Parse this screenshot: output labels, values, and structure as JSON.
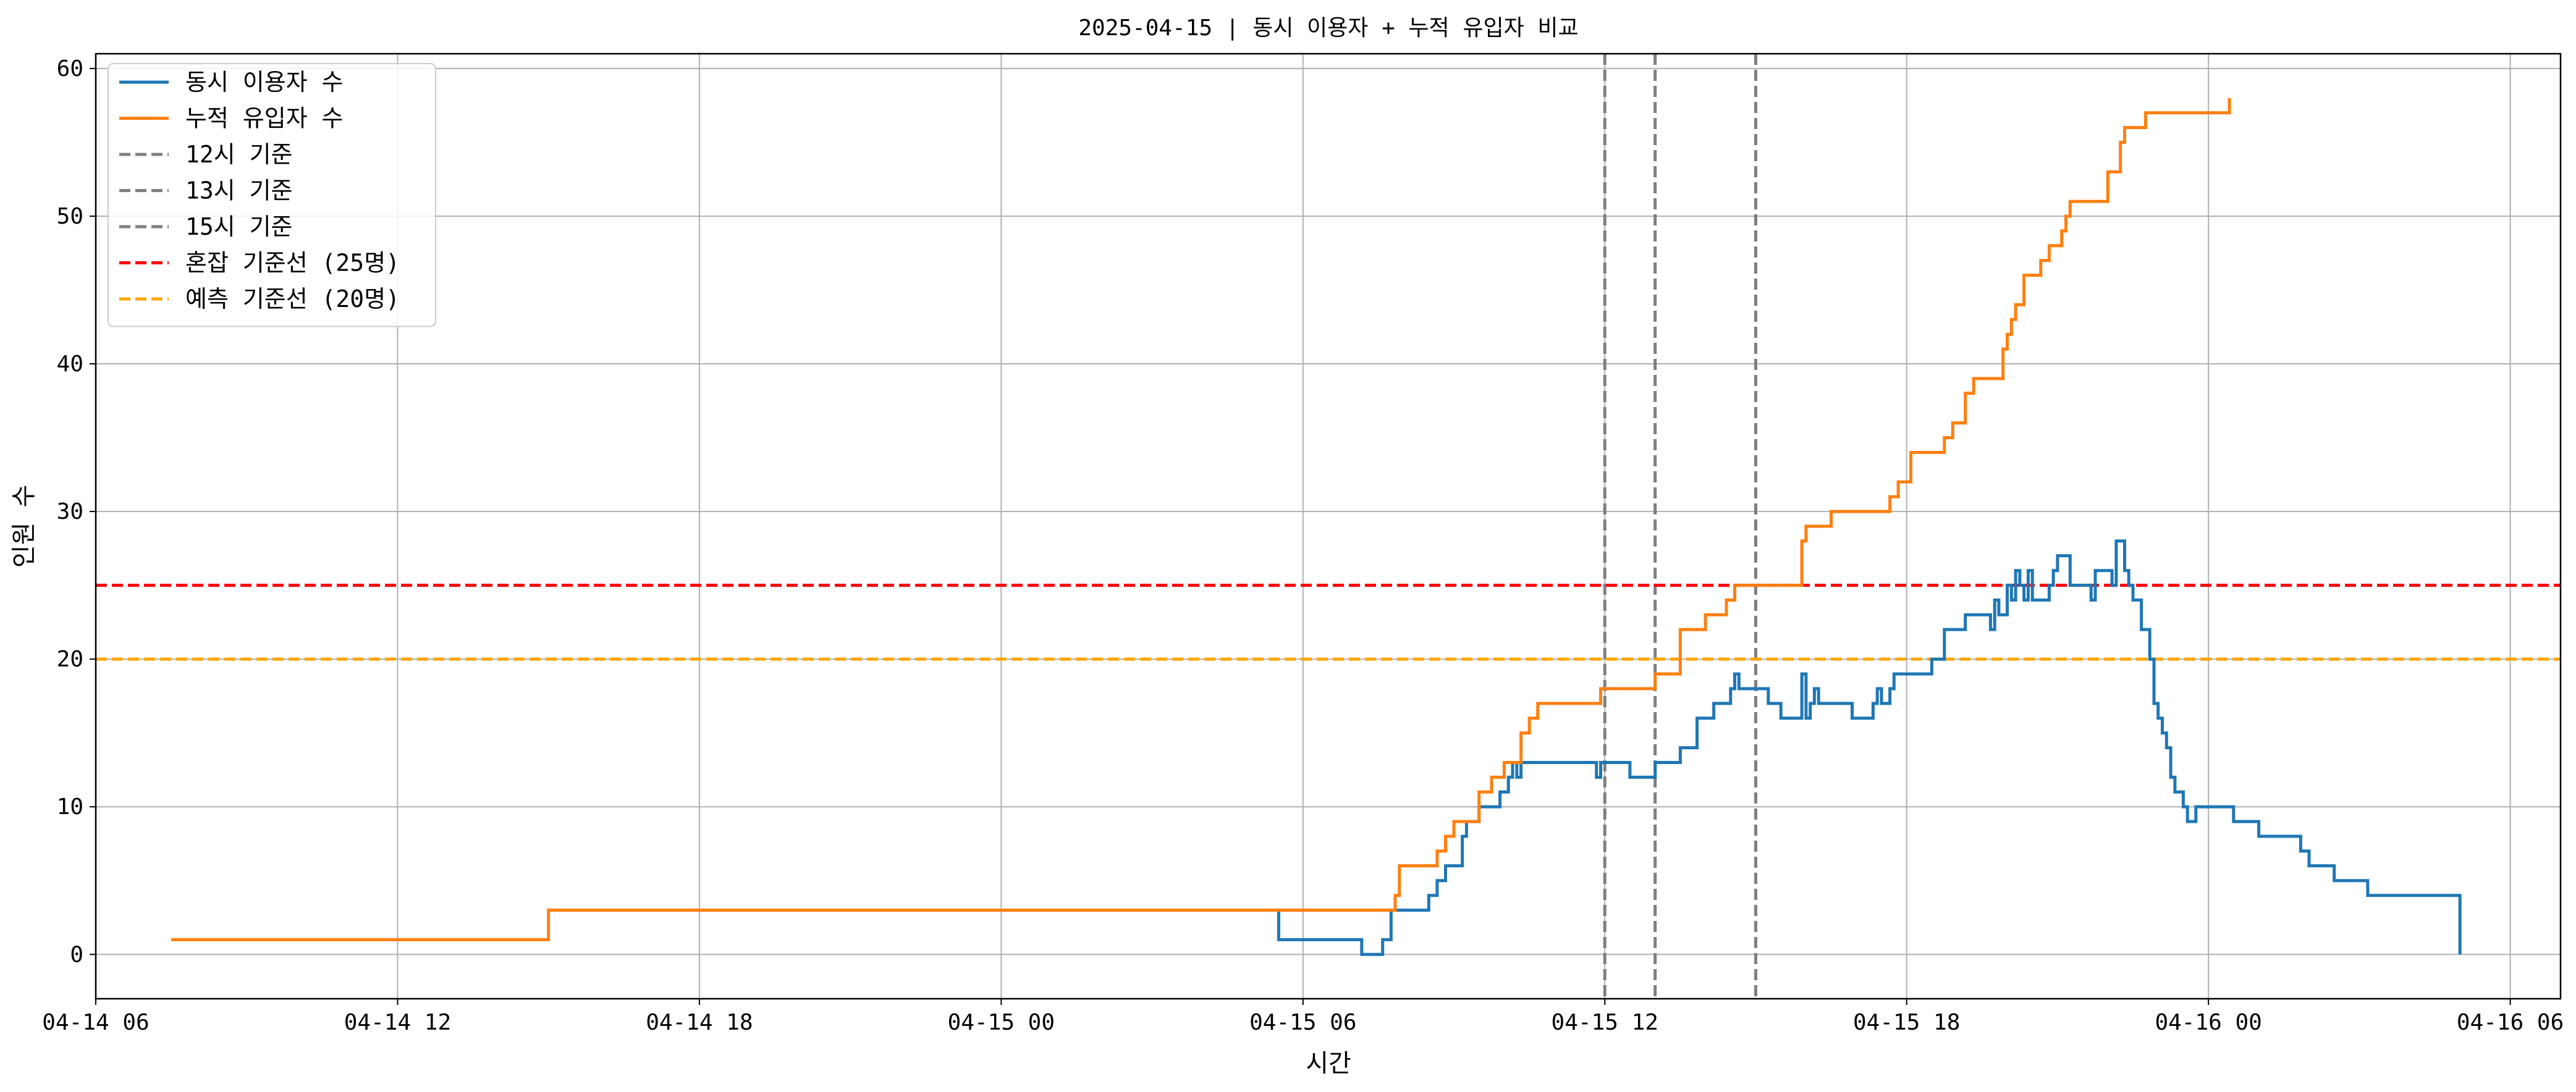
{
  "chart_data": {
    "type": "line",
    "title": "2025-04-15 | 동시 이용자 + 누적 유입자 비교",
    "xlabel": "시간",
    "ylabel": "인원 수",
    "xlim": [
      "2025-04-14 06:00",
      "2025-04-16 07:00"
    ],
    "ylim": [
      -3,
      61
    ],
    "x_ticks": [
      {
        "time": "2025-04-14 06:00",
        "label": "04-14 06"
      },
      {
        "time": "2025-04-14 12:00",
        "label": "04-14 12"
      },
      {
        "time": "2025-04-14 18:00",
        "label": "04-14 18"
      },
      {
        "time": "2025-04-15 00:00",
        "label": "04-15 00"
      },
      {
        "time": "2025-04-15 06:00",
        "label": "04-15 06"
      },
      {
        "time": "2025-04-15 12:00",
        "label": "04-15 12"
      },
      {
        "time": "2025-04-15 18:00",
        "label": "04-15 18"
      },
      {
        "time": "2025-04-16 00:00",
        "label": "04-16 00"
      },
      {
        "time": "2025-04-16 06:00",
        "label": "04-16 06"
      }
    ],
    "y_ticks": [
      0,
      10,
      20,
      30,
      40,
      50,
      60
    ],
    "grid": true,
    "legend_position": "top-left",
    "series": [
      {
        "name": "동시 이용자 수",
        "color": "#1f77b4",
        "step": true,
        "points": [
          [
            "2025-04-15 05:30",
            3
          ],
          [
            "2025-04-15 05:31",
            1
          ],
          [
            "2025-04-15 07:10",
            0
          ],
          [
            "2025-04-15 07:35",
            1
          ],
          [
            "2025-04-15 07:45",
            3
          ],
          [
            "2025-04-15 08:30",
            4
          ],
          [
            "2025-04-15 08:40",
            5
          ],
          [
            "2025-04-15 08:50",
            6
          ],
          [
            "2025-04-15 09:10",
            8
          ],
          [
            "2025-04-15 09:15",
            9
          ],
          [
            "2025-04-15 09:30",
            10
          ],
          [
            "2025-04-15 09:55",
            11
          ],
          [
            "2025-04-15 10:05",
            12
          ],
          [
            "2025-04-15 10:10",
            13
          ],
          [
            "2025-04-15 10:15",
            12
          ],
          [
            "2025-04-15 10:20",
            13
          ],
          [
            "2025-04-15 11:50",
            12
          ],
          [
            "2025-04-15 11:55",
            13
          ],
          [
            "2025-04-15 12:30",
            12
          ],
          [
            "2025-04-15 13:00",
            13
          ],
          [
            "2025-04-15 13:30",
            14
          ],
          [
            "2025-04-15 13:50",
            16
          ],
          [
            "2025-04-15 14:10",
            17
          ],
          [
            "2025-04-15 14:30",
            18
          ],
          [
            "2025-04-15 14:35",
            19
          ],
          [
            "2025-04-15 14:40",
            18
          ],
          [
            "2025-04-15 15:15",
            17
          ],
          [
            "2025-04-15 15:30",
            16
          ],
          [
            "2025-04-15 15:55",
            19
          ],
          [
            "2025-04-15 16:00",
            16
          ],
          [
            "2025-04-15 16:05",
            17
          ],
          [
            "2025-04-15 16:10",
            18
          ],
          [
            "2025-04-15 16:15",
            17
          ],
          [
            "2025-04-15 16:55",
            16
          ],
          [
            "2025-04-15 17:20",
            17
          ],
          [
            "2025-04-15 17:25",
            18
          ],
          [
            "2025-04-15 17:30",
            17
          ],
          [
            "2025-04-15 17:40",
            18
          ],
          [
            "2025-04-15 17:45",
            19
          ],
          [
            "2025-04-15 18:30",
            20
          ],
          [
            "2025-04-15 18:45",
            22
          ],
          [
            "2025-04-15 19:10",
            23
          ],
          [
            "2025-04-15 19:40",
            22
          ],
          [
            "2025-04-15 19:45",
            24
          ],
          [
            "2025-04-15 19:50",
            23
          ],
          [
            "2025-04-15 20:00",
            25
          ],
          [
            "2025-04-15 20:05",
            24
          ],
          [
            "2025-04-15 20:10",
            26
          ],
          [
            "2025-04-15 20:15",
            25
          ],
          [
            "2025-04-15 20:20",
            24
          ],
          [
            "2025-04-15 20:25",
            26
          ],
          [
            "2025-04-15 20:30",
            24
          ],
          [
            "2025-04-15 20:50",
            25
          ],
          [
            "2025-04-15 20:55",
            26
          ],
          [
            "2025-04-15 21:00",
            27
          ],
          [
            "2025-04-15 21:15",
            25
          ],
          [
            "2025-04-15 21:40",
            24
          ],
          [
            "2025-04-15 21:45",
            26
          ],
          [
            "2025-04-15 22:05",
            25
          ],
          [
            "2025-04-15 22:10",
            28
          ],
          [
            "2025-04-15 22:20",
            26
          ],
          [
            "2025-04-15 22:25",
            25
          ],
          [
            "2025-04-15 22:30",
            24
          ],
          [
            "2025-04-15 22:40",
            22
          ],
          [
            "2025-04-15 22:50",
            20
          ],
          [
            "2025-04-15 22:55",
            17
          ],
          [
            "2025-04-15 23:00",
            16
          ],
          [
            "2025-04-15 23:05",
            15
          ],
          [
            "2025-04-15 23:10",
            14
          ],
          [
            "2025-04-15 23:15",
            12
          ],
          [
            "2025-04-15 23:20",
            11
          ],
          [
            "2025-04-15 23:30",
            10
          ],
          [
            "2025-04-15 23:35",
            9
          ],
          [
            "2025-04-15 23:45",
            10
          ],
          [
            "2025-04-16 00:30",
            9
          ],
          [
            "2025-04-16 01:00",
            8
          ],
          [
            "2025-04-16 01:50",
            7
          ],
          [
            "2025-04-16 02:00",
            6
          ],
          [
            "2025-04-16 02:30",
            5
          ],
          [
            "2025-04-16 03:10",
            4
          ],
          [
            "2025-04-16 05:00",
            0
          ]
        ]
      },
      {
        "name": "누적 유입자 수",
        "color": "#ff7f0e",
        "step": true,
        "points": [
          [
            "2025-04-14 07:30",
            1
          ],
          [
            "2025-04-14 15:00",
            3
          ],
          [
            "2025-04-15 07:50",
            4
          ],
          [
            "2025-04-15 07:55",
            6
          ],
          [
            "2025-04-15 08:40",
            7
          ],
          [
            "2025-04-15 08:50",
            8
          ],
          [
            "2025-04-15 09:00",
            9
          ],
          [
            "2025-04-15 09:30",
            11
          ],
          [
            "2025-04-15 09:45",
            12
          ],
          [
            "2025-04-15 10:00",
            13
          ],
          [
            "2025-04-15 10:20",
            15
          ],
          [
            "2025-04-15 10:30",
            16
          ],
          [
            "2025-04-15 10:40",
            17
          ],
          [
            "2025-04-15 11:55",
            18
          ],
          [
            "2025-04-15 13:00",
            19
          ],
          [
            "2025-04-15 13:30",
            22
          ],
          [
            "2025-04-15 14:00",
            23
          ],
          [
            "2025-04-15 14:25",
            24
          ],
          [
            "2025-04-15 14:35",
            25
          ],
          [
            "2025-04-15 15:55",
            28
          ],
          [
            "2025-04-15 16:00",
            29
          ],
          [
            "2025-04-15 16:30",
            30
          ],
          [
            "2025-04-15 17:40",
            31
          ],
          [
            "2025-04-15 17:50",
            32
          ],
          [
            "2025-04-15 18:05",
            34
          ],
          [
            "2025-04-15 18:45",
            35
          ],
          [
            "2025-04-15 18:55",
            36
          ],
          [
            "2025-04-15 19:10",
            38
          ],
          [
            "2025-04-15 19:20",
            39
          ],
          [
            "2025-04-15 19:55",
            41
          ],
          [
            "2025-04-15 20:00",
            42
          ],
          [
            "2025-04-15 20:05",
            43
          ],
          [
            "2025-04-15 20:10",
            44
          ],
          [
            "2025-04-15 20:20",
            46
          ],
          [
            "2025-04-15 20:40",
            47
          ],
          [
            "2025-04-15 20:50",
            48
          ],
          [
            "2025-04-15 21:05",
            49
          ],
          [
            "2025-04-15 21:10",
            50
          ],
          [
            "2025-04-15 21:15",
            51
          ],
          [
            "2025-04-15 22:00",
            53
          ],
          [
            "2025-04-15 22:15",
            55
          ],
          [
            "2025-04-15 22:20",
            56
          ],
          [
            "2025-04-15 22:45",
            57
          ],
          [
            "2025-04-16 00:25",
            58
          ]
        ]
      }
    ],
    "reference_lines": [
      {
        "orientation": "vertical",
        "time": "2025-04-15 12:00",
        "name": "12시 기준",
        "color": "#7f7f7f",
        "style": "dashed"
      },
      {
        "orientation": "vertical",
        "time": "2025-04-15 13:00",
        "name": "13시 기준",
        "color": "#7f7f7f",
        "style": "dashed"
      },
      {
        "orientation": "vertical",
        "time": "2025-04-15 15:00",
        "name": "15시 기준",
        "color": "#7f7f7f",
        "style": "dashed"
      },
      {
        "orientation": "horizontal",
        "value": 25,
        "name": "혼잡 기준선 (25명)",
        "color": "#ff0000",
        "style": "dashed"
      },
      {
        "orientation": "horizontal",
        "value": 20,
        "name": "예측 기준선 (20명)",
        "color": "#ffa500",
        "style": "dashed"
      }
    ],
    "legend": [
      {
        "label": "동시 이용자 수",
        "color": "#1f77b4",
        "style": "solid"
      },
      {
        "label": "누적 유입자 수",
        "color": "#ff7f0e",
        "style": "solid"
      },
      {
        "label": "12시 기준",
        "color": "#7f7f7f",
        "style": "dashed"
      },
      {
        "label": "13시 기준",
        "color": "#7f7f7f",
        "style": "dashed"
      },
      {
        "label": "15시 기준",
        "color": "#7f7f7f",
        "style": "dashed"
      },
      {
        "label": "혼잡 기준선 (25명)",
        "color": "#ff0000",
        "style": "dashed"
      },
      {
        "label": "예측 기준선 (20명)",
        "color": "#ffa500",
        "style": "dashed"
      }
    ]
  }
}
